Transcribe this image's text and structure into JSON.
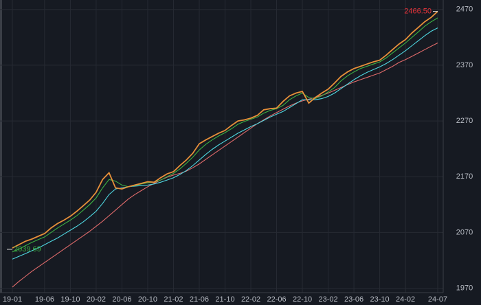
{
  "chart_data": {
    "type": "line",
    "categories": [
      "19-01",
      null,
      null,
      null,
      null,
      "19-06",
      null,
      null,
      null,
      "19-10",
      null,
      null,
      null,
      "20-02",
      null,
      null,
      null,
      "20-06",
      null,
      null,
      null,
      "20-10",
      null,
      null,
      null,
      "21-02",
      null,
      null,
      null,
      "21-06",
      null,
      null,
      null,
      "21-10",
      null,
      null,
      null,
      "22-02",
      null,
      null,
      null,
      "22-06",
      null,
      null,
      null,
      "22-10",
      null,
      null,
      null,
      "23-02",
      null,
      null,
      null,
      "23-06",
      null,
      null,
      null,
      "23-10",
      null,
      null,
      null,
      "24-02",
      null,
      null,
      null,
      null,
      "24-07"
    ],
    "series": [
      {
        "color": "#e8903a",
        "values": [
          2042,
          2048,
          2054,
          2058,
          2063,
          2068,
          2078,
          2086,
          2092,
          2099,
          2108,
          2118,
          2128,
          2142,
          2165,
          2177,
          2150,
          2148,
          2152,
          2155,
          2158,
          2161,
          2160,
          2168,
          2175,
          2179,
          2190,
          2200,
          2212,
          2229,
          2236,
          2242,
          2248,
          2253,
          2262,
          2270,
          2272,
          2275,
          2280,
          2290,
          2292,
          2293,
          2305,
          2315,
          2320,
          2323,
          2302,
          2312,
          2320,
          2327,
          2338,
          2350,
          2358,
          2364,
          2368,
          2372,
          2376,
          2379,
          2388,
          2398,
          2408,
          2416,
          2428,
          2438,
          2448,
          2456,
          2466.5
        ]
      },
      {
        "color": "#3cb043",
        "values": [
          2035,
          2040,
          2046,
          2052,
          2057,
          2062,
          2070,
          2078,
          2085,
          2092,
          2100,
          2110,
          2120,
          2132,
          2150,
          2165,
          2162,
          2155,
          2152,
          2154,
          2157,
          2159,
          2160,
          2164,
          2170,
          2176,
          2184,
          2194,
          2205,
          2218,
          2228,
          2236,
          2243,
          2249,
          2256,
          2264,
          2269,
          2273,
          2277,
          2284,
          2289,
          2292,
          2298,
          2308,
          2315,
          2320,
          2312,
          2310,
          2315,
          2322,
          2330,
          2342,
          2351,
          2358,
          2364,
          2368,
          2372,
          2376,
          2383,
          2392,
          2401,
          2410,
          2420,
          2430,
          2440,
          2448,
          2455
        ]
      },
      {
        "color": "#4fd6e0",
        "values": [
          2022,
          2027,
          2032,
          2037,
          2042,
          2048,
          2054,
          2060,
          2067,
          2074,
          2081,
          2089,
          2098,
          2108,
          2122,
          2138,
          2148,
          2150,
          2152,
          2153,
          2154,
          2155,
          2157,
          2160,
          2164,
          2168,
          2174,
          2181,
          2190,
          2200,
          2210,
          2219,
          2227,
          2234,
          2241,
          2248,
          2254,
          2260,
          2265,
          2271,
          2277,
          2282,
          2287,
          2294,
          2301,
          2308,
          2308,
          2308,
          2310,
          2314,
          2320,
          2328,
          2336,
          2344,
          2351,
          2357,
          2362,
          2367,
          2373,
          2380,
          2388,
          2396,
          2405,
          2414,
          2423,
          2431,
          2437
        ]
      },
      {
        "color": "#e06b6b",
        "values": [
          1972,
          1982,
          1991,
          2000,
          2008,
          2016,
          2024,
          2032,
          2040,
          2048,
          2056,
          2064,
          2072,
          2081,
          2090,
          2100,
          2110,
          2120,
          2130,
          2138,
          2145,
          2152,
          2158,
          2164,
          2169,
          2173,
          2176,
          2180,
          2186,
          2193,
          2201,
          2209,
          2217,
          2225,
          2233,
          2241,
          2249,
          2257,
          2265,
          2272,
          2279,
          2285,
          2291,
          2297,
          2302,
          2306,
          2309,
          2312,
          2316,
          2320,
          2325,
          2330,
          2335,
          2340,
          2344,
          2348,
          2352,
          2356,
          2362,
          2368,
          2375,
          2380,
          2386,
          2392,
          2398,
          2404,
          2410
        ]
      }
    ],
    "max_label": "2466.50",
    "min_label": "2039.69",
    "ylim": [
      1962,
      2487
    ],
    "yticks": [
      1970,
      2070,
      2170,
      2270,
      2370,
      2470
    ],
    "grid": true
  }
}
